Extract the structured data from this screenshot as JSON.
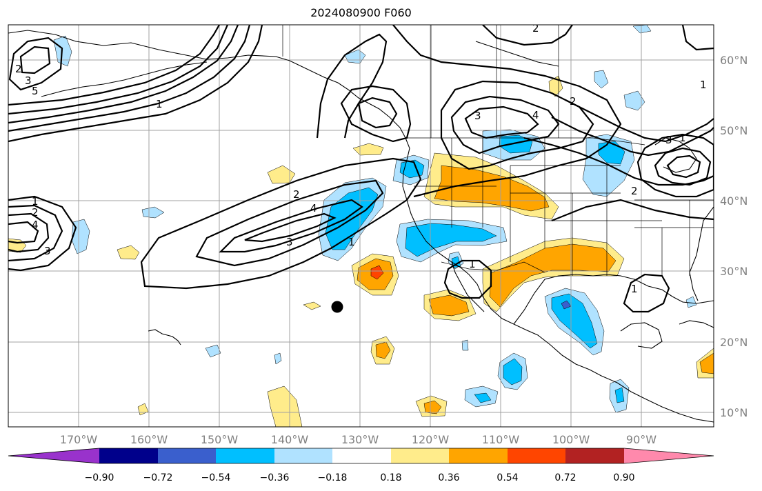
{
  "title": "2024080900 F060",
  "lon_labels": [
    "170°W",
    "160°W",
    "150°W",
    "140°W",
    "130°W",
    "120°W",
    "110°W",
    "100°W",
    "90°W"
  ],
  "lat_labels": [
    "60°N",
    "50°N",
    "40°N",
    "30°N",
    "20°N",
    "10°N"
  ],
  "colorbar": {
    "colors": [
      "#9932cc",
      "#00008b",
      "#3a5fcd",
      "#00bfff",
      "#b0e2ff",
      "#ffffff",
      "#ffec8b",
      "#ffa500",
      "#ff4500",
      "#b22222",
      "#ff89ac"
    ],
    "tick_labels": [
      "−0.90",
      "−0.72",
      "−0.54",
      "−0.36",
      "−0.18",
      "0.18",
      "0.36",
      "0.54",
      "0.72",
      "0.90"
    ]
  },
  "contour_labels": [
    "1",
    "2",
    "3",
    "4",
    "5"
  ],
  "marker": "black-dot"
}
